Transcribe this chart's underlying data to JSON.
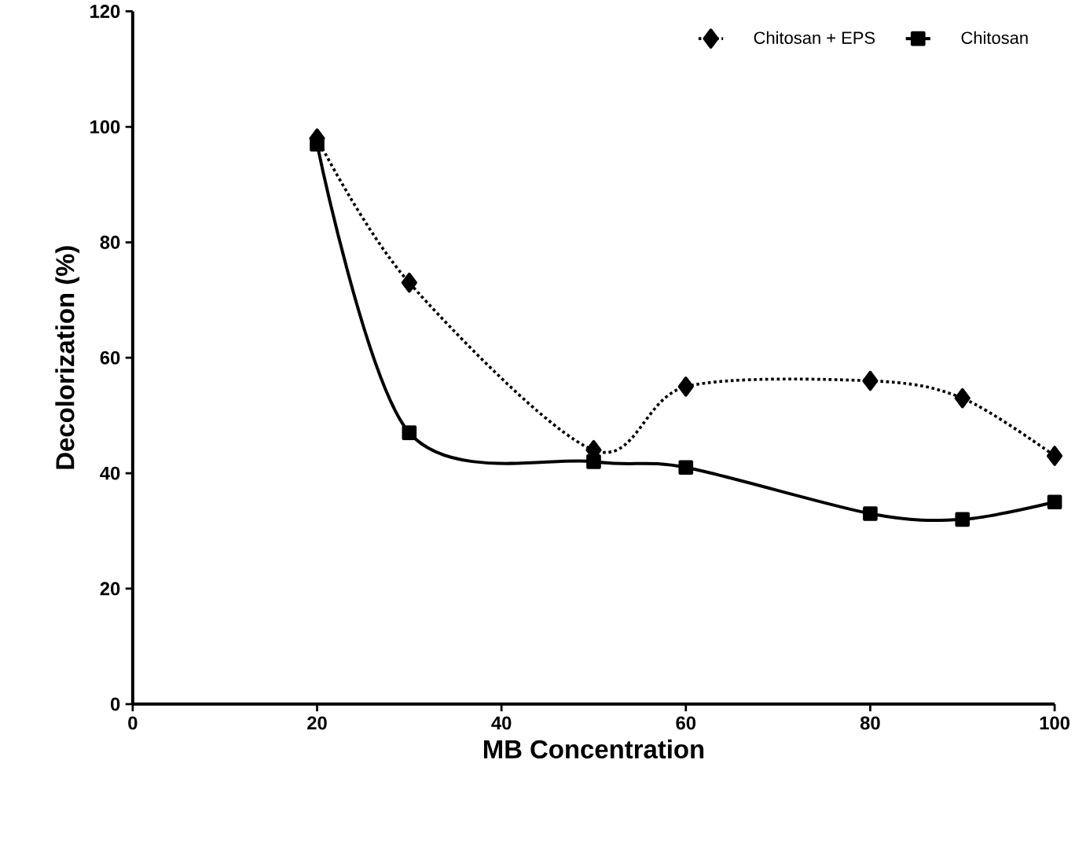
{
  "chart_data": {
    "type": "line",
    "xlabel": "MB Concentration",
    "ylabel": "Decolorization (%)",
    "x": [
      20,
      30,
      50,
      60,
      80,
      90,
      100
    ],
    "series": [
      {
        "name": "Chitosan + EPS",
        "color": "#000000",
        "marker": "diamond",
        "line_style": "dotted",
        "values": [
          98,
          73,
          44,
          55,
          56,
          53,
          43
        ]
      },
      {
        "name": "Chitosan",
        "color": "#000000",
        "marker": "square",
        "line_style": "solid",
        "values": [
          97,
          47,
          42,
          41,
          33,
          32,
          35
        ]
      }
    ],
    "xlim": [
      0,
      100
    ],
    "xticks": [
      0,
      20,
      40,
      60,
      80,
      100
    ],
    "ylim": [
      0,
      120
    ],
    "yticks": [
      0,
      20,
      40,
      60,
      80,
      100,
      120
    ],
    "grid": false,
    "legend": "top right"
  }
}
